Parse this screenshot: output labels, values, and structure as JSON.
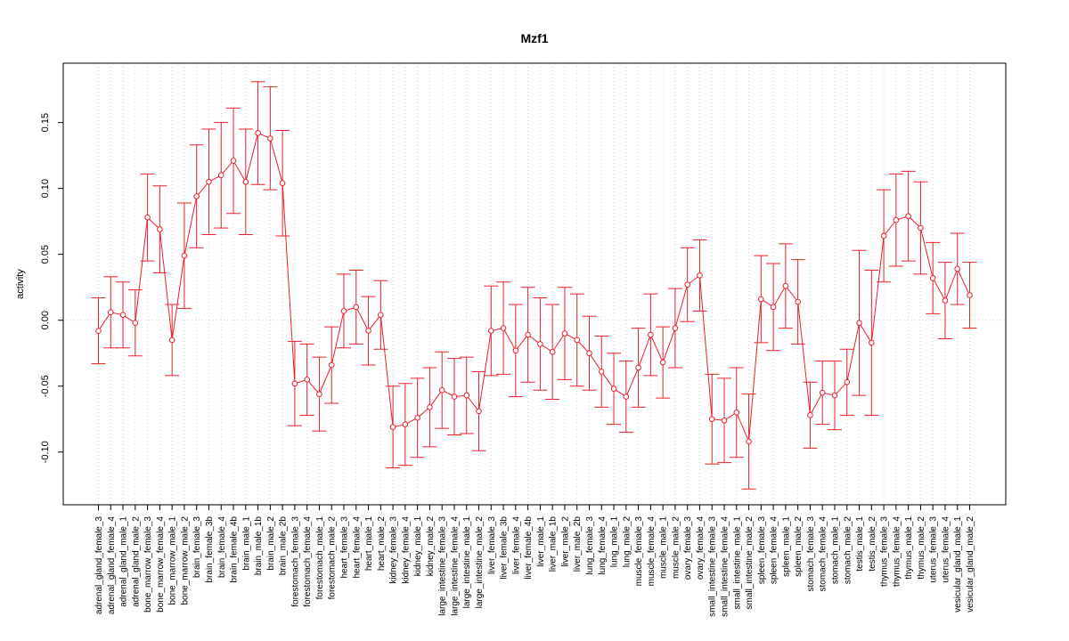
{
  "chart_data": {
    "type": "line",
    "title": "Mzf1",
    "xlabel": "",
    "ylabel": "activity",
    "ylim": [
      -0.14,
      0.195
    ],
    "yticks": [
      -0.1,
      -0.05,
      0.0,
      0.05,
      0.1,
      0.15
    ],
    "ytick_labels": [
      "-0.10",
      "-0.05",
      "0.00",
      "0.05",
      "0.10",
      "0.15"
    ],
    "grid": true,
    "reference_line": 0,
    "color": "#e8202a",
    "categories": [
      "adrenal_gland_female_3",
      "adrenal_gland_female_4",
      "adrenal_gland_male_1",
      "adrenal_gland_male_2",
      "bone_marrow_female_3",
      "bone_marrow_female_4",
      "bone_marrow_male_1",
      "bone_marrow_male_2",
      "brain_female_3",
      "brain_female_3b",
      "brain_female_4",
      "brain_female_4b",
      "brain_male_1",
      "brain_male_1b",
      "brain_male_2",
      "brain_male_2b",
      "forestomach_female_3",
      "forestomach_female_4",
      "forestomach_male_1",
      "forestomach_male_2",
      "heart_female_3",
      "heart_female_4",
      "heart_male_1",
      "heart_male_2",
      "kidney_female_3",
      "kidney_female_4",
      "kidney_male_1",
      "kidney_male_2",
      "large_intestine_female_3",
      "large_intestine_female_4",
      "large_intestine_male_1",
      "large_intestine_male_2",
      "liver_female_3",
      "liver_female_3b",
      "liver_female_4",
      "liver_female_4b",
      "liver_male_1",
      "liver_male_1b",
      "liver_male_2",
      "liver_male_2b",
      "lung_female_3",
      "lung_female_4",
      "lung_male_1",
      "lung_male_2",
      "muscle_female_3",
      "muscle_female_4",
      "muscle_male_1",
      "muscle_male_2",
      "ovary_female_3",
      "ovary_female_4",
      "small_intestine_female_3",
      "small_intestine_female_4",
      "small_intestine_male_1",
      "small_intestine_male_2",
      "spleen_female_3",
      "spleen_female_4",
      "spleen_male_1",
      "spleen_male_2",
      "stomach_female_3",
      "stomach_female_4",
      "stomach_male_1",
      "stomach_male_2",
      "testis_male_1",
      "testis_male_2",
      "thymus_female_3",
      "thymus_female_4",
      "thymus_male_1",
      "thymus_male_2",
      "uterus_female_3",
      "uterus_female_4",
      "vesicular_gland_male_1",
      "vesicular_gland_male_2"
    ],
    "values": [
      -0.008,
      0.006,
      0.004,
      -0.002,
      0.078,
      0.069,
      -0.015,
      0.049,
      0.094,
      0.105,
      0.11,
      0.121,
      0.105,
      0.142,
      0.138,
      0.104,
      -0.048,
      -0.045,
      -0.056,
      -0.034,
      0.007,
      0.01,
      -0.008,
      0.004,
      -0.081,
      -0.079,
      -0.074,
      -0.066,
      -0.053,
      -0.058,
      -0.057,
      -0.069,
      -0.008,
      -0.006,
      -0.023,
      -0.011,
      -0.018,
      -0.024,
      -0.01,
      -0.015,
      -0.025,
      -0.039,
      -0.052,
      -0.058,
      -0.036,
      -0.011,
      -0.032,
      -0.006,
      0.027,
      0.034,
      -0.075,
      -0.076,
      -0.07,
      -0.092,
      0.016,
      0.01,
      0.026,
      0.014,
      -0.072,
      -0.055,
      -0.057,
      -0.047,
      -0.002,
      -0.017,
      0.064,
      0.076,
      0.079,
      0.07,
      0.032,
      0.015,
      0.039,
      0.019
    ],
    "error": [
      0.025,
      0.027,
      0.025,
      0.025,
      0.033,
      0.033,
      0.027,
      0.04,
      0.039,
      0.04,
      0.04,
      0.04,
      0.04,
      0.039,
      0.039,
      0.04,
      0.032,
      0.027,
      0.028,
      0.029,
      0.028,
      0.028,
      0.026,
      0.026,
      0.031,
      0.031,
      0.03,
      0.03,
      0.029,
      0.029,
      0.029,
      0.03,
      0.034,
      0.035,
      0.035,
      0.036,
      0.035,
      0.036,
      0.035,
      0.035,
      0.028,
      0.027,
      0.027,
      0.027,
      0.03,
      0.031,
      0.027,
      0.03,
      0.028,
      0.027,
      0.034,
      0.032,
      0.034,
      0.036,
      0.033,
      0.033,
      0.032,
      0.032,
      0.025,
      0.024,
      0.026,
      0.025,
      0.055,
      0.055,
      0.035,
      0.035,
      0.034,
      0.035,
      0.027,
      0.029,
      0.027,
      0.025
    ]
  }
}
